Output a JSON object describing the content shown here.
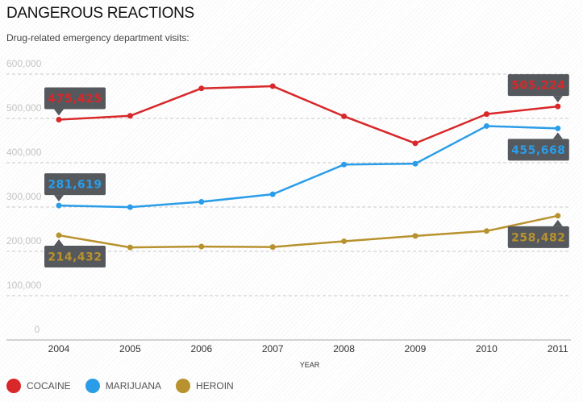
{
  "chart_data": {
    "type": "line",
    "title": "DANGEROUS REACTIONS",
    "subtitle": "Drug-related emergency department visits:",
    "xlabel": "YEAR",
    "ylabel": "",
    "x": [
      "2004",
      "2005",
      "2006",
      "2007",
      "2008",
      "2009",
      "2010",
      "2011"
    ],
    "ylim": [
      0,
      600000
    ],
    "yticks": [
      0,
      100000,
      200000,
      300000,
      400000,
      500000,
      600000
    ],
    "ytick_labels": [
      "0",
      "100,000",
      "200,000",
      "300,000",
      "400,000",
      "500,000",
      "600,000"
    ],
    "grid": true,
    "legend_position": "bottom-left",
    "series": [
      {
        "name": "COCAINE",
        "color": "#d8282a",
        "values": [
          475425,
          484000,
          546000,
          551000,
          483000,
          422000,
          488000,
          505224
        ],
        "callouts": [
          {
            "index": 0,
            "label": "475,425",
            "side": "above"
          },
          {
            "index": 7,
            "label": "505,224",
            "side": "above"
          }
        ]
      },
      {
        "name": "MARIJUANA",
        "color": "#2b9de8",
        "values": [
          281619,
          278000,
          290000,
          307000,
          374000,
          376000,
          461000,
          455668
        ],
        "callouts": [
          {
            "index": 0,
            "label": "281,619",
            "side": "above"
          },
          {
            "index": 7,
            "label": "455,668",
            "side": "below"
          }
        ]
      },
      {
        "name": "HEROIN",
        "color": "#b8922e",
        "values": [
          214432,
          187000,
          189000,
          188000,
          201000,
          213000,
          224000,
          258482
        ],
        "callouts": [
          {
            "index": 0,
            "label": "214,432",
            "side": "below"
          },
          {
            "index": 7,
            "label": "258,482",
            "side": "below"
          }
        ]
      }
    ]
  }
}
